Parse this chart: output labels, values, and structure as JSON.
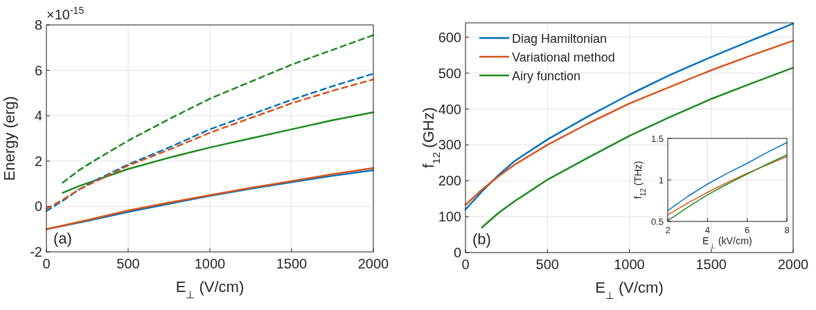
{
  "chart_data": [
    {
      "type": "line",
      "xlabel": "E$_{⊥}$ (V/cm)",
      "ylabel": "Energy (erg)",
      "annotations": [
        "×10$^{-15}$",
        "(a)"
      ],
      "xlim": [
        0,
        2000
      ],
      "xticks": [
        0,
        500,
        1000,
        1500,
        2000
      ],
      "ylim": [
        -2,
        8
      ],
      "yticks": [
        -2,
        0,
        2,
        4,
        6,
        8
      ],
      "grid": true,
      "legend": false,
      "marker": "none",
      "series": [
        {
          "color": "#0072bd",
          "line_style": "solid",
          "x": [
            0,
            250,
            500,
            750,
            1000,
            1250,
            1500,
            1750,
            2000
          ],
          "values": [
            -1,
            -0.64,
            -0.24,
            0.12,
            0.47,
            0.78,
            1.07,
            1.35,
            1.6
          ]
        },
        {
          "color": "#d95319",
          "line_style": "solid",
          "x": [
            0,
            250,
            500,
            750,
            1000,
            1250,
            1500,
            1750,
            2000
          ],
          "values": [
            -1,
            -0.6,
            -0.18,
            0.17,
            0.5,
            0.82,
            1.12,
            1.42,
            1.7
          ]
        },
        {
          "color": "#1a8a1a",
          "line_style": "solid",
          "x": [
            100,
            200,
            300,
            500,
            750,
            1000,
            1250,
            1500,
            1750,
            2000
          ],
          "values": [
            0.6,
            0.9,
            1.15,
            1.65,
            2.15,
            2.6,
            3.0,
            3.4,
            3.8,
            4.15
          ]
        },
        {
          "color": "#0072bd",
          "line_style": "dashed",
          "x": [
            0,
            100,
            200,
            300,
            500,
            750,
            1000,
            1250,
            1500,
            1750,
            2000
          ],
          "values": [
            -0.2,
            0.25,
            0.75,
            1.15,
            1.85,
            2.6,
            3.4,
            4.05,
            4.7,
            5.3,
            5.85
          ]
        },
        {
          "color": "#d95319",
          "line_style": "dashed",
          "x": [
            0,
            100,
            200,
            300,
            500,
            750,
            1000,
            1250,
            1500,
            1750,
            2000
          ],
          "values": [
            -0.1,
            0.3,
            0.75,
            1.1,
            1.8,
            2.5,
            3.25,
            3.9,
            4.55,
            5.1,
            5.6
          ]
        },
        {
          "color": "#1a8a1a",
          "line_style": "dashed",
          "x": [
            100,
            200,
            300,
            500,
            750,
            1000,
            1250,
            1500,
            1750,
            2000
          ],
          "values": [
            1.05,
            1.6,
            2.05,
            2.9,
            3.85,
            4.75,
            5.5,
            6.25,
            6.9,
            7.55
          ]
        }
      ]
    },
    {
      "type": "line",
      "xlabel": "E$_{⊥}$ (V/cm)",
      "ylabel": "f$_{12}$ (GHz)",
      "annotations": [
        "(b)"
      ],
      "xlim": [
        0,
        2000
      ],
      "xticks": [
        0,
        500,
        1000,
        1500,
        2000
      ],
      "ylim": [
        0,
        640
      ],
      "yticks": [
        0,
        100,
        200,
        300,
        400,
        500,
        600
      ],
      "grid": true,
      "legend": "top left",
      "marker": "none",
      "line_style": "solid",
      "series": [
        {
          "name": "Diag Hamiltonian",
          "color": "#0072bd",
          "x": [
            0,
            100,
            200,
            300,
            500,
            750,
            1000,
            1250,
            1500,
            1750,
            2000
          ],
          "values": [
            120,
            170,
            215,
            255,
            315,
            380,
            440,
            495,
            545,
            592,
            638
          ]
        },
        {
          "name": "Variational method",
          "color": "#d95319",
          "x": [
            0,
            100,
            200,
            300,
            500,
            750,
            1000,
            1250,
            1500,
            1750,
            2000
          ],
          "values": [
            133,
            175,
            212,
            245,
            300,
            360,
            415,
            462,
            508,
            550,
            590
          ]
        },
        {
          "name": "Airy function",
          "color": "#1a8a1a",
          "x": [
            100,
            200,
            300,
            500,
            750,
            1000,
            1250,
            1500,
            1750,
            2000
          ],
          "values": [
            70,
            110,
            143,
            203,
            265,
            325,
            378,
            428,
            472,
            515
          ]
        }
      ]
    },
    {
      "type": "line",
      "xlabel": "E$_{⊥}$ (kV/cm)",
      "ylabel": "f$_{12}$ (THz)",
      "xlim": [
        2,
        8
      ],
      "xticks": [
        2,
        4,
        6,
        8
      ],
      "ylim": [
        0.5,
        1.5
      ],
      "yticks": [
        0.5,
        1,
        1.5
      ],
      "grid": true,
      "legend": false,
      "marker": "none",
      "line_style": "solid",
      "series": [
        {
          "color": "#0072bd",
          "x": [
            2,
            3,
            4,
            5,
            6,
            7,
            8
          ],
          "values": [
            0.63,
            0.8,
            0.95,
            1.08,
            1.2,
            1.33,
            1.45
          ]
        },
        {
          "color": "#d95319",
          "x": [
            2,
            3,
            4,
            5,
            6,
            7,
            8
          ],
          "values": [
            0.58,
            0.72,
            0.85,
            0.97,
            1.08,
            1.18,
            1.28
          ]
        },
        {
          "color": "#1a8a1a",
          "x": [
            2,
            3,
            4,
            5,
            6,
            7,
            8
          ],
          "values": [
            0.51,
            0.67,
            0.82,
            0.95,
            1.07,
            1.19,
            1.3
          ]
        }
      ]
    }
  ]
}
